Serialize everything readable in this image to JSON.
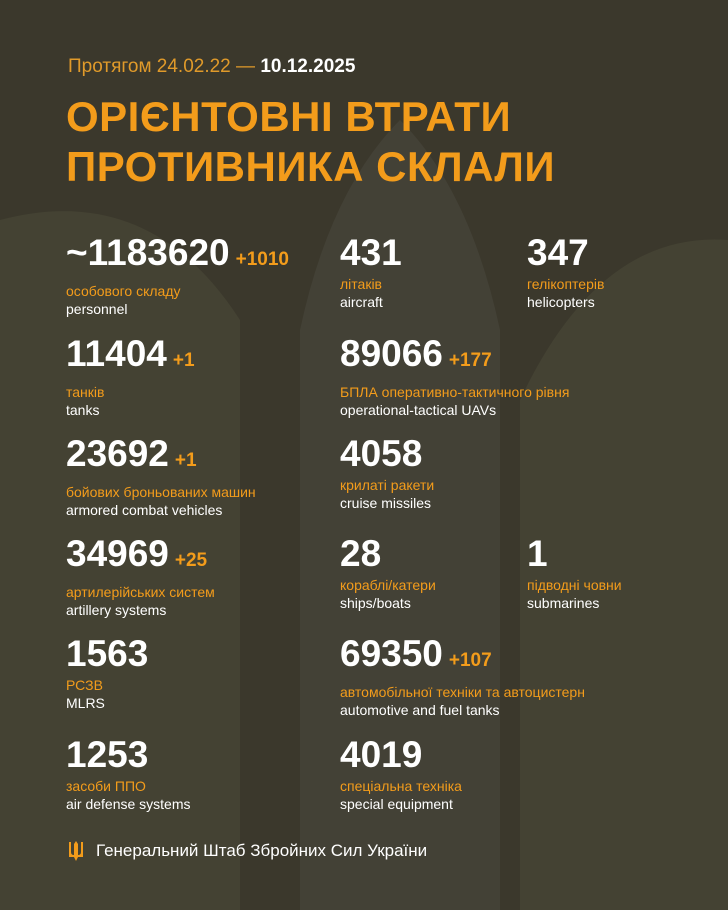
{
  "header": {
    "period_prefix": "Протягом 24.02.22 —",
    "period_end": "10.12.2025",
    "title_line1": "ОРІЄНТОВНІ ВТРАТИ",
    "title_line2": "ПРОТИВНИКА СКЛАЛИ"
  },
  "stats": [
    {
      "value": "~1183620",
      "delta": "+1010",
      "ua": "особового складу",
      "en": "personnel"
    },
    {
      "value": "431",
      "delta": "",
      "ua": "літаків",
      "en": "aircraft"
    },
    {
      "value": "347",
      "delta": "",
      "ua": "гелікоптерів",
      "en": "helicopters"
    },
    {
      "value": "11404",
      "delta": "+1",
      "ua": "танків",
      "en": "tanks"
    },
    {
      "value": "89066",
      "delta": "+177",
      "ua": "БПЛА оперативно-тактичного рівня",
      "en": "operational-tactical UAVs"
    },
    {
      "value": "23692",
      "delta": "+1",
      "ua": "бойових броньованих машин",
      "en": "armored combat vehicles"
    },
    {
      "value": "4058",
      "delta": "",
      "ua": "крилаті ракети",
      "en": "cruise missiles"
    },
    {
      "value": "34969",
      "delta": "+25",
      "ua": "артилерійських систем",
      "en": "artillery systems"
    },
    {
      "value": "28",
      "delta": "",
      "ua": "кораблі/катери",
      "en": "ships/boats"
    },
    {
      "value": "1",
      "delta": "",
      "ua": "підводні човни",
      "en": "submarines"
    },
    {
      "value": "1563",
      "delta": "",
      "ua": "РСЗВ",
      "en": "MLRS"
    },
    {
      "value": "69350",
      "delta": "+107",
      "ua": "автомобільної техніки та автоцистерн",
      "en": "automotive and fuel tanks"
    },
    {
      "value": "1253",
      "delta": "",
      "ua": "засоби ППО",
      "en": "air defense systems"
    },
    {
      "value": "4019",
      "delta": "",
      "ua": "спеціальна техніка",
      "en": "special equipment"
    }
  ],
  "footer": {
    "org": "Генеральний Штаб Збройних Сил України",
    "icon": "trident-icon"
  },
  "colors": {
    "background": "#3b382c",
    "accent": "#f39c1b",
    "text": "#ffffff"
  }
}
